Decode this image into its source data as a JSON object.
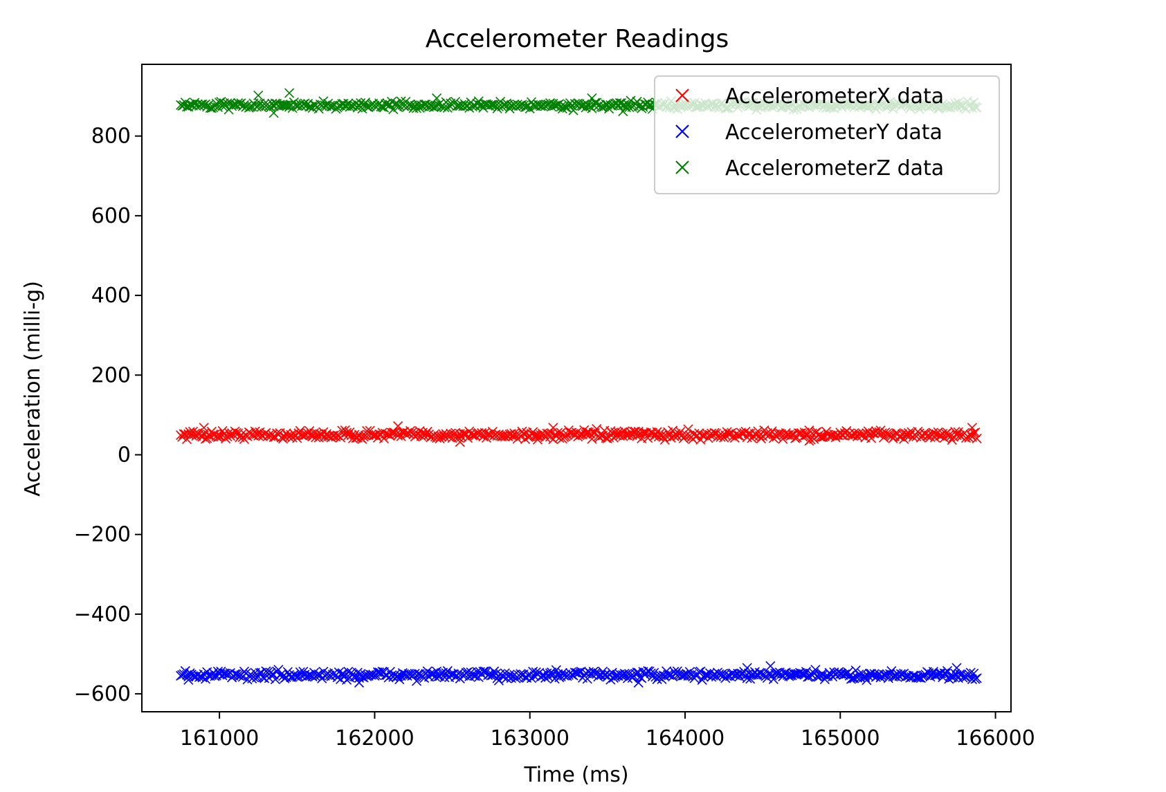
{
  "chart_data": {
    "type": "scatter",
    "title": "Accelerometer Readings",
    "xlabel": "Time (ms)",
    "ylabel": "Acceleration (milli-g)",
    "xlim": [
      160500,
      166100
    ],
    "ylim": [
      -645,
      980
    ],
    "x_ticks": [
      161000,
      162000,
      163000,
      164000,
      165000,
      166000
    ],
    "x_tick_labels": [
      "161000",
      "162000",
      "163000",
      "164000",
      "165000",
      "166000"
    ],
    "y_ticks": [
      -600,
      -400,
      -200,
      0,
      200,
      400,
      600,
      800
    ],
    "y_tick_labels": [
      "−600",
      "−400",
      "−200",
      "0",
      "200",
      "400",
      "600",
      "800"
    ],
    "grid": false,
    "legend_position": "upper right",
    "marker": "x",
    "x_range": [
      160750,
      165880
    ],
    "sample_interval_ms": 10,
    "series": [
      {
        "name": "AccelerometerX data",
        "color": "#ff0000",
        "mean": 50,
        "spread": 10,
        "outliers": [
          [
            160900,
            68
          ],
          [
            162150,
            72
          ],
          [
            162550,
            32
          ],
          [
            163150,
            68
          ],
          [
            163050,
            38
          ],
          [
            164800,
            35
          ],
          [
            165850,
            68
          ]
        ]
      },
      {
        "name": "AccelerometerY data",
        "color": "#0000ff",
        "mean": -553,
        "spread": 10,
        "outliers": [
          [
            161900,
            -572
          ],
          [
            163700,
            -572
          ],
          [
            164400,
            -535
          ],
          [
            164550,
            -530
          ],
          [
            165750,
            -535
          ],
          [
            160800,
            -565
          ]
        ]
      },
      {
        "name": "AccelerometerZ data",
        "color": "#008000",
        "mean": 877,
        "spread": 8,
        "outliers": [
          [
            161250,
            902
          ],
          [
            161350,
            858
          ],
          [
            161450,
            908
          ],
          [
            162400,
            895
          ],
          [
            163400,
            895
          ],
          [
            163600,
            862
          ]
        ]
      }
    ]
  }
}
